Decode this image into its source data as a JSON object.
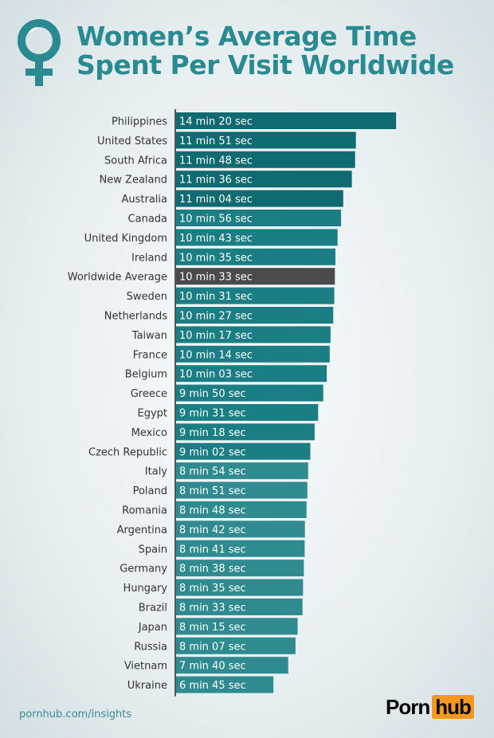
{
  "chart_data": {
    "type": "bar",
    "orientation": "horizontal",
    "title": "Women's Average Time Spent Per Visit Worldwide",
    "unit": "seconds",
    "categories": [
      "Philippines",
      "United States",
      "South Africa",
      "New Zealand",
      "Australia",
      "Canada",
      "United Kingdom",
      "Ireland",
      "Worldwide Average",
      "Sweden",
      "Netherlands",
      "Taiwan",
      "France",
      "Belgium",
      "Greece",
      "Egypt",
      "Mexico",
      "Czech Republic",
      "Italy",
      "Poland",
      "Romania",
      "Argentina",
      "Spain",
      "Germany",
      "Hungary",
      "Brazil",
      "Japan",
      "Russia",
      "Vietnam",
      "Ukraine"
    ],
    "labels": [
      "14 min 20 sec",
      "11 min 51 sec",
      "11 min 48 sec",
      "11 min 36 sec",
      "11 min 04 sec",
      "10 min 56 sec",
      "10 min 43 sec",
      "10 min 35 sec",
      "10 min 33 sec",
      "10 min 31 sec",
      "10 min 27 sec",
      "10 min 17 sec",
      "10 min 14 sec",
      "10 min 03 sec",
      "9 min 50 sec",
      "9 min 31 sec",
      "9 min 18 sec",
      "9 min 02 sec",
      "8 min 54 sec",
      "8 min 51 sec",
      "8 min 48 sec",
      "8 min 42 sec",
      "8 min 41 sec",
      "8 min 38 sec",
      "8 min 35 sec",
      "8 min 33 sec",
      "8 min 15 sec",
      "8 min 07 sec",
      "7 min 40 sec",
      "6 min 45 sec"
    ],
    "values": [
      860,
      711,
      708,
      696,
      664,
      656,
      643,
      635,
      633,
      631,
      627,
      617,
      614,
      603,
      590,
      571,
      558,
      542,
      534,
      531,
      528,
      522,
      521,
      518,
      515,
      513,
      495,
      487,
      460,
      405
    ],
    "colors": {
      "top": "#0f6a71",
      "mid": "#1c7e85",
      "low": "#2f8b90",
      "average": "#4b4b4b"
    },
    "grid": false,
    "legend": "none"
  },
  "header": {
    "title_line1": "Women’s Average Time",
    "title_line2": "Spent Per Visit Worldwide",
    "icon": "female-symbol-icon"
  },
  "footer": {
    "url": "pornhub.com/insights",
    "logo_left": "Porn",
    "logo_right": "hub"
  }
}
